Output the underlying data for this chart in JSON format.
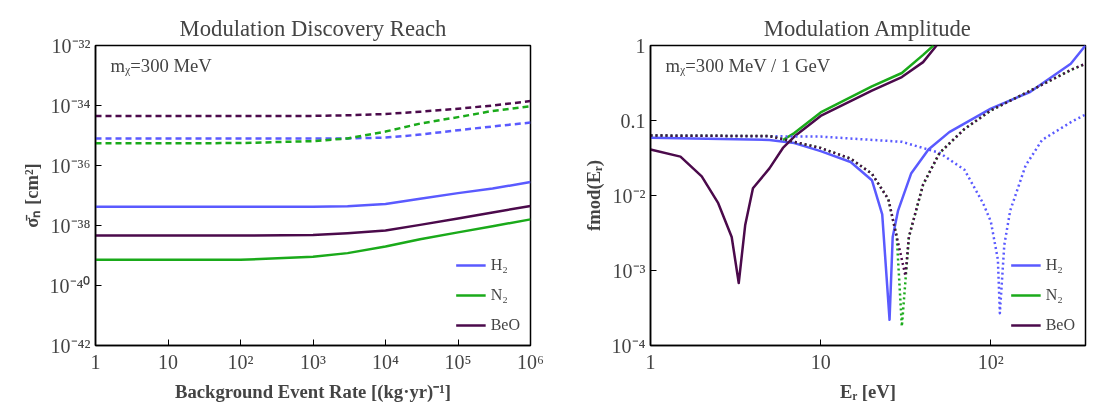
{
  "chart_data": [
    {
      "type": "line",
      "title": "Modulation Discovery Reach",
      "xlabel": "Background Event Rate [(kg·yr)⁻¹]",
      "ylabel": "σ̄ₙ [cm²]",
      "annotations": [
        "mᵪ=300 MeV"
      ],
      "log": "xy",
      "xlim": [
        1,
        1000000
      ],
      "ylim": [
        1e-42,
        1e-32
      ],
      "xticks": [
        {
          "value": 1,
          "label": "1"
        },
        {
          "value": 10,
          "label": "10"
        },
        {
          "value": 100,
          "label": "10²"
        },
        {
          "value": 1000,
          "label": "10³"
        },
        {
          "value": 10000,
          "label": "10⁴"
        },
        {
          "value": 100000,
          "label": "10⁵"
        },
        {
          "value": 1000000,
          "label": "10⁶"
        }
      ],
      "yticks": [
        {
          "value": 1e-42,
          "label": "10⁻⁴²"
        },
        {
          "value": 1e-40,
          "label": "10⁻⁴⁰"
        },
        {
          "value": 1e-38,
          "label": "10⁻³⁸"
        },
        {
          "value": 1e-36,
          "label": "10⁻³⁶"
        },
        {
          "value": 1e-34,
          "label": "10⁻³⁴"
        },
        {
          "value": 1e-32,
          "label": "10⁻³²"
        }
      ],
      "grid": false,
      "legend": "bottom right",
      "x": [
        1,
        10,
        100,
        1000,
        3000,
        10000,
        30000,
        100000,
        300000,
        1000000
      ],
      "series": [
        {
          "name": "H₂",
          "color": "#5a5aff",
          "line_style": "solid",
          "values": [
            4.2e-38,
            4.2e-38,
            4.2e-38,
            4.2e-38,
            4.4e-38,
            5.2e-38,
            7.8e-38,
            1.2e-37,
            1.7e-37,
            2.8e-37
          ]
        },
        {
          "name": "N₂",
          "color": "#1aaa1a",
          "line_style": "solid",
          "values": [
            7.2e-40,
            7.2e-40,
            7.2e-40,
            9.1e-40,
            1.2e-39,
            2e-39,
            3.5e-39,
            5.9e-39,
            9.5e-39,
            1.6e-38
          ]
        },
        {
          "name": "BeO",
          "color": "#4b0a4b",
          "line_style": "solid",
          "values": [
            4.6e-39,
            4.6e-39,
            4.6e-39,
            4.8e-39,
            5.5e-39,
            6.8e-39,
            1.05e-38,
            1.7e-38,
            2.7e-38,
            4.5e-38
          ]
        },
        {
          "color": "#5a5aff",
          "line_style": "dashed",
          "values": [
            8e-36,
            8e-36,
            8e-36,
            8e-36,
            8e-36,
            8.5e-36,
            1.07e-35,
            1.5e-35,
            2e-35,
            2.7e-35
          ]
        },
        {
          "color": "#1aaa1a",
          "line_style": "dashed",
          "values": [
            5.5e-36,
            5.5e-36,
            5.6e-36,
            6.5e-36,
            8e-36,
            1.35e-35,
            2.5e-35,
            4.1e-35,
            6.6e-35,
            9.5e-35
          ]
        },
        {
          "color": "#4b0a4b",
          "line_style": "dashed",
          "values": [
            4.5e-35,
            4.5e-35,
            4.5e-35,
            4.5e-35,
            4.7e-35,
            5.2e-35,
            6.2e-35,
            7.8e-35,
            1e-34,
            1.4e-34
          ]
        }
      ]
    },
    {
      "type": "line",
      "title": "Modulation Amplitude",
      "xlabel": "Eᵣ [eV]",
      "ylabel": "fmod(Eᵣ)",
      "annotations": [
        "mᵪ=300 MeV / 1 GeV"
      ],
      "log": "xy",
      "xlim": [
        1,
        360
      ],
      "ylim": [
        0.0001,
        1
      ],
      "xticks": [
        {
          "value": 1,
          "label": "1"
        },
        {
          "value": 10,
          "label": "10"
        },
        {
          "value": 100,
          "label": "10²"
        }
      ],
      "yticks": [
        {
          "value": 0.0001,
          "label": "10⁻⁴"
        },
        {
          "value": 0.001,
          "label": "10⁻³"
        },
        {
          "value": 0.01,
          "label": "10⁻²"
        },
        0.1,
        1
      ],
      "grid": false,
      "legend": "bottom right",
      "series": [
        {
          "name": "H₂",
          "color": "#5a5aff",
          "line_style": "solid",
          "x": [
            1,
            5,
            7,
            10,
            15,
            20,
            23,
            25.4,
            26.5,
            28.5,
            34,
            43,
            57,
            100,
            170,
            295,
            360
          ],
          "values": [
            0.059,
            0.055,
            0.05,
            0.039,
            0.028,
            0.016,
            0.0056,
            0.00022,
            0.0028,
            0.0063,
            0.0196,
            0.041,
            0.07,
            0.144,
            0.24,
            0.57,
            1.0
          ]
        },
        {
          "name": "N₂",
          "color": "#1aaa1a",
          "line_style": "solid",
          "x": [
            6,
            7,
            10,
            20,
            30,
            40,
            46
          ],
          "values": [
            0.055,
            0.068,
            0.128,
            0.285,
            0.43,
            0.75,
            1.0
          ]
        },
        {
          "name": "BeO",
          "color": "#4b0a4b",
          "line_style": "solid",
          "x": [
            1,
            1.5,
            2,
            2.5,
            3,
            3.3,
            3.6,
            4,
            5,
            6,
            7,
            10,
            20,
            30,
            40,
            48
          ],
          "values": [
            0.041,
            0.033,
            0.018,
            0.0079,
            0.0028,
            0.00068,
            0.004,
            0.0125,
            0.023,
            0.043,
            0.061,
            0.115,
            0.25,
            0.38,
            0.6,
            1.0
          ]
        },
        {
          "color": "#5a5aff",
          "line_style": "dotted",
          "x": [
            1,
            10,
            30,
            50,
            70,
            90,
            100,
            110,
            113,
            120,
            130,
            160,
            200,
            300,
            360
          ],
          "values": [
            0.063,
            0.061,
            0.052,
            0.037,
            0.022,
            0.0079,
            0.0045,
            0.0014,
            0.00027,
            0.0022,
            0.0063,
            0.025,
            0.055,
            0.097,
            0.12
          ]
        },
        {
          "color": "#1aaa1a",
          "line_style": "dotted",
          "x": [
            1,
            5,
            10,
            15,
            20,
            25,
            28,
            30,
            33,
            40,
            50,
            70,
            100,
            200,
            300,
            360
          ],
          "values": [
            0.063,
            0.062,
            0.043,
            0.031,
            0.0195,
            0.0089,
            0.0028,
            0.00018,
            0.0028,
            0.014,
            0.037,
            0.077,
            0.136,
            0.3,
            0.48,
            0.57
          ]
        },
        {
          "color": "#4b0a4b",
          "line_style": "dotted",
          "x": [
            1,
            5,
            10,
            15,
            20,
            25,
            28,
            31.5,
            33,
            40,
            50,
            70,
            100,
            200,
            300,
            360
          ],
          "values": [
            0.063,
            0.062,
            0.043,
            0.031,
            0.0195,
            0.0089,
            0.0028,
            0.00085,
            0.0028,
            0.014,
            0.037,
            0.077,
            0.136,
            0.3,
            0.48,
            0.57
          ]
        }
      ]
    }
  ]
}
